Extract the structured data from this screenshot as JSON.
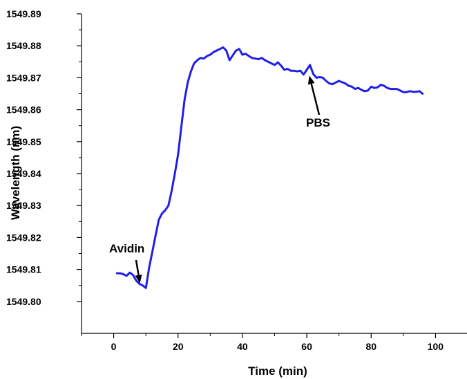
{
  "chart_data": {
    "type": "line",
    "title": "",
    "xlabel": "Time (min)",
    "ylabel": "Wavelength (nm)",
    "xlim": [
      -10,
      110
    ],
    "ylim": [
      1549.79,
      1549.89
    ],
    "xticks": [
      0,
      20,
      40,
      60,
      80,
      100
    ],
    "xtick_labels": [
      "0",
      "20",
      "40",
      "60",
      "80",
      "100"
    ],
    "yticks": [
      1549.8,
      1549.81,
      1549.82,
      1549.83,
      1549.84,
      1549.85,
      1549.86,
      1549.87,
      1549.88,
      1549.89
    ],
    "ytick_labels": [
      "1549.80",
      "1549.81",
      "1549.82",
      "1549.83",
      "1549.84",
      "1549.85",
      "1549.86",
      "1549.87",
      "1549.88",
      "1549.89"
    ],
    "grid": false,
    "line_color": "#1f1fe6",
    "series": [
      {
        "name": "",
        "x": [
          1,
          2,
          3,
          4,
          5,
          6,
          7,
          8,
          9,
          10,
          11,
          12,
          13,
          14,
          15,
          16,
          17,
          18,
          19,
          20,
          21,
          22,
          23,
          24,
          25,
          26,
          27,
          28,
          29,
          30,
          31,
          32,
          33,
          34,
          35,
          36,
          37,
          38,
          39,
          40,
          41,
          42,
          43,
          44,
          45,
          46,
          47,
          48,
          49,
          50,
          51,
          52,
          53,
          54,
          55,
          56,
          57,
          58,
          59,
          60,
          61,
          62,
          63,
          64,
          65,
          66,
          67,
          68,
          69,
          70,
          71,
          72,
          73,
          74,
          75,
          76,
          77,
          78,
          79,
          80,
          81,
          82,
          83,
          84,
          85,
          86,
          87,
          88,
          89,
          90,
          91,
          92,
          93,
          94,
          95,
          96
        ],
        "y": [
          1549.8088,
          1549.8088,
          1549.8085,
          1549.808,
          1549.809,
          1549.8083,
          1549.8065,
          1549.8055,
          1549.805,
          1549.8042,
          1549.8105,
          1549.8155,
          1549.8205,
          1549.8255,
          1549.8275,
          1549.8285,
          1549.83,
          1549.8345,
          1549.84,
          1549.846,
          1549.8545,
          1549.863,
          1549.8685,
          1549.872,
          1549.8745,
          1549.8755,
          1549.8762,
          1549.876,
          1549.8768,
          1549.8772,
          1549.878,
          1549.8785,
          1549.879,
          1549.8795,
          1549.8785,
          1549.8755,
          1549.877,
          1549.8785,
          1549.879,
          1549.8772,
          1549.8775,
          1549.8768,
          1549.8762,
          1549.876,
          1549.8758,
          1549.8762,
          1549.8755,
          1549.875,
          1549.8745,
          1549.874,
          1549.8748,
          1549.8738,
          1549.8725,
          1549.8728,
          1549.8722,
          1549.8722,
          1549.872,
          1549.8722,
          1549.871,
          1549.8725,
          1549.874,
          1549.8712,
          1549.87,
          1549.8702,
          1549.87,
          1549.869,
          1549.8682,
          1549.868,
          1549.8685,
          1549.869,
          1549.8686,
          1549.8682,
          1549.8675,
          1549.8672,
          1549.8665,
          1549.8668,
          1549.8662,
          1549.8658,
          1549.866,
          1549.8672,
          1549.8668,
          1549.867,
          1549.8678,
          1549.8675,
          1549.8668,
          1549.8665,
          1549.8665,
          1549.8665,
          1549.866,
          1549.8655,
          1549.8655,
          1549.8658,
          1549.8656,
          1549.8656,
          1549.8658,
          1549.865
        ]
      }
    ],
    "annotations": [
      {
        "text": "Avidin",
        "x": 9,
        "y": 1549.805
      },
      {
        "text": "PBS",
        "x": 61,
        "y": 1549.8715
      }
    ]
  }
}
